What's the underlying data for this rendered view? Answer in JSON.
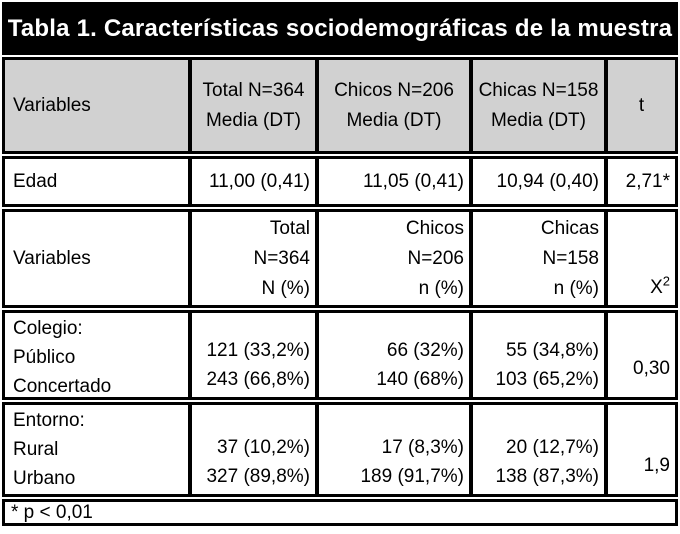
{
  "title": "Tabla 1. Características sociodemográficas de la muestra",
  "colors": {
    "title_bg": "#000000",
    "title_fg": "#ffffff",
    "header_bg": "#d1d1d1",
    "border": "#000000",
    "body_bg": "#ffffff"
  },
  "header_media": {
    "variables": "Variables",
    "total_line1": "Total N=364",
    "total_line2": "Media (DT)",
    "chicos_line1": "Chicos N=206",
    "chicos_line2": "Media (DT)",
    "chicas_line1": "Chicas N=158",
    "chicas_line2": "Media (DT)",
    "stat": "t"
  },
  "edad_row": {
    "label": "Edad",
    "total": "11,00 (0,41)",
    "chicos": "11,05 (0,41)",
    "chicas": "10,94 (0,40)",
    "t": "2,71*"
  },
  "header_n": {
    "variables": "Variables",
    "total": [
      "Total",
      "N=364",
      "N (%)"
    ],
    "chicos": [
      "Chicos",
      "N=206",
      "n (%)"
    ],
    "chicas": [
      "Chicas",
      "N=158",
      "n (%)"
    ],
    "stat_base": "X",
    "stat_sup": "2"
  },
  "colegio_row": {
    "label_lines": [
      "Colegio:",
      "Público",
      "Concertado"
    ],
    "total": [
      "121 (33,2%)",
      "243 (66,8%)"
    ],
    "chicos": [
      "66 (32%)",
      "140 (68%)"
    ],
    "chicas": [
      "55 (34,8%)",
      "103 (65,2%)"
    ],
    "chi": "0,30"
  },
  "entorno_row": {
    "label_lines": [
      "Entorno:",
      "Rural",
      "Urbano"
    ],
    "total": [
      "37 (10,2%)",
      "327 (89,8%)"
    ],
    "chicos": [
      "17 (8,3%)",
      "189 (91,7%)"
    ],
    "chicas": [
      "20 (12,7%)",
      "138 (87,3%)"
    ],
    "chi": "1,9"
  },
  "footnote": {
    "text": "* p < 0,01"
  },
  "chart_data": {
    "type": "table",
    "title": "Tabla 1. Características sociodemográficas de la muestra",
    "sections": [
      {
        "columns": [
          "Variables",
          "Total N=364 Media (DT)",
          "Chicos N=206 Media (DT)",
          "Chicas N=158 Media (DT)",
          "t"
        ],
        "rows": [
          [
            "Edad",
            "11,00 (0,41)",
            "11,05 (0,41)",
            "10,94 (0,40)",
            "2,71*"
          ]
        ]
      },
      {
        "columns": [
          "Variables",
          "Total N=364 N (%)",
          "Chicos N=206 n (%)",
          "Chicas N=158 n (%)",
          "X2"
        ],
        "rows": [
          [
            "Colegio: Público",
            "121 (33,2%)",
            "66 (32%)",
            "55 (34,8%)",
            "0,30"
          ],
          [
            "Colegio: Concertado",
            "243 (66,8%)",
            "140 (68%)",
            "103 (65,2%)",
            "0,30"
          ],
          [
            "Entorno: Rural",
            "37 (10,2%)",
            "17 (8,3%)",
            "20 (12,7%)",
            "1,9"
          ],
          [
            "Entorno: Urbano",
            "327 (89,8%)",
            "189 (91,7%)",
            "138 (87,3%)",
            "1,9"
          ]
        ]
      }
    ],
    "footnote": "* p < 0,01"
  }
}
